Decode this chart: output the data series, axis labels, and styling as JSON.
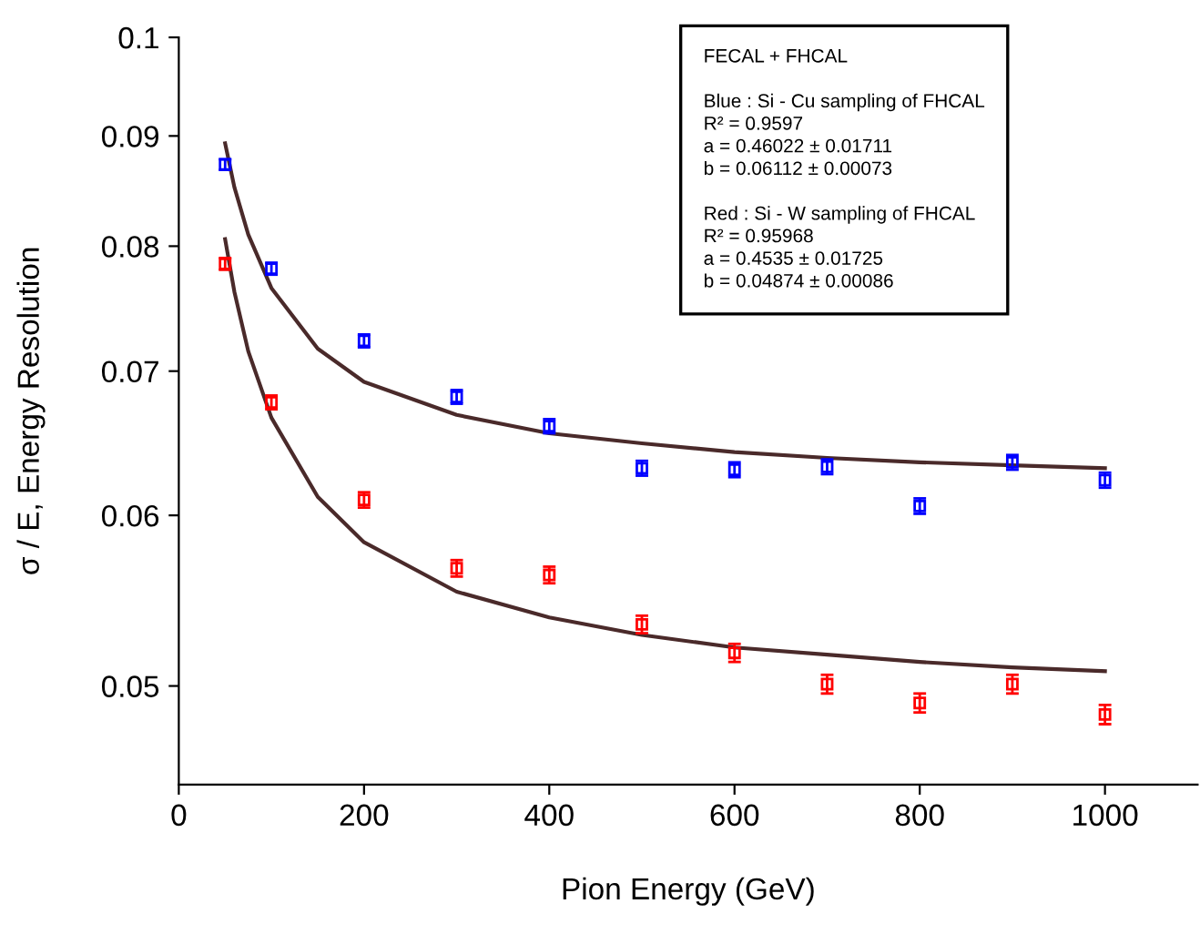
{
  "chart_data": {
    "type": "scatter",
    "xlabel": "Pion Energy (GeV)",
    "ylabel": "σ / E, Energy Resolution",
    "log": "y",
    "xlim": [
      0,
      1100
    ],
    "xticks": [
      0,
      200,
      400,
      600,
      800,
      1000
    ],
    "ylim": [
      0.045,
      0.1
    ],
    "yticks": [
      {
        "value": 0.05,
        "label": "0.05"
      },
      {
        "value": 0.06,
        "label": "0.06"
      },
      {
        "value": 0.07,
        "label": "0.07"
      },
      {
        "value": 0.08,
        "label": "0.08"
      },
      {
        "value": 0.09,
        "label": "0.09"
      },
      {
        "value": 0.1,
        "label": "0.1"
      }
    ],
    "grid": false,
    "series": [
      {
        "marker": "square",
        "color": "#0000ff",
        "x": [
          50,
          100,
          200,
          300,
          400,
          500,
          600,
          700,
          800,
          900,
          1000
        ],
        "values": [
          0.0873,
          0.0781,
          0.0723,
          0.0681,
          0.066,
          0.0631,
          0.063,
          0.0632,
          0.0606,
          0.0635,
          0.0623
        ],
        "errors": [
          0.0005,
          0.0005,
          0.0005,
          0.0005,
          0.0005,
          0.0005,
          0.0005,
          0.0005,
          0.0005,
          0.0005,
          0.0005
        ]
      },
      {
        "marker": "square",
        "color": "#ff0000",
        "x": [
          50,
          100,
          200,
          300,
          400,
          500,
          600,
          700,
          800,
          900,
          1000
        ],
        "values": [
          0.0785,
          0.0677,
          0.061,
          0.0567,
          0.0563,
          0.0534,
          0.0518,
          0.0501,
          0.0491,
          0.0501,
          0.0485
        ],
        "errors": [
          0.0005,
          0.0005,
          0.0005,
          0.0005,
          0.0005,
          0.0005,
          0.0005,
          0.0005,
          0.0005,
          0.0005,
          0.0005
        ]
      },
      {
        "type": "line",
        "color": "#4a2a2a",
        "line_style": "solid",
        "x": [
          50,
          60,
          75,
          100,
          150,
          200,
          300,
          400,
          500,
          600,
          700,
          800,
          900,
          1000
        ],
        "values": [
          0.0893,
          0.0852,
          0.081,
          0.0765,
          0.0717,
          0.0692,
          0.0668,
          0.0655,
          0.0648,
          0.0642,
          0.0638,
          0.0635,
          0.0633,
          0.0631
        ]
      },
      {
        "type": "line",
        "color": "#4a2a2a",
        "line_style": "solid",
        "x": [
          50,
          60,
          75,
          100,
          150,
          200,
          300,
          400,
          500,
          600,
          700,
          800,
          900,
          1000
        ],
        "values": [
          0.0806,
          0.0762,
          0.0715,
          0.0666,
          0.0612,
          0.0583,
          0.0553,
          0.0538,
          0.0528,
          0.0521,
          0.0517,
          0.0513,
          0.051,
          0.0508
        ]
      }
    ],
    "annotations": [
      "FECAL + FHCAL\n\nBlue : Si - Cu sampling of FHCAL\nR² = 0.9597\na = 0.46022 ± 0.01711\nb = 0.06112 ± 0.00073\n\nRed : Si - W sampling of FHCAL\nR² = 0.95968\na = 0.4535 ± 0.01725\nb = 0.04874 ± 0.00086"
    ]
  }
}
